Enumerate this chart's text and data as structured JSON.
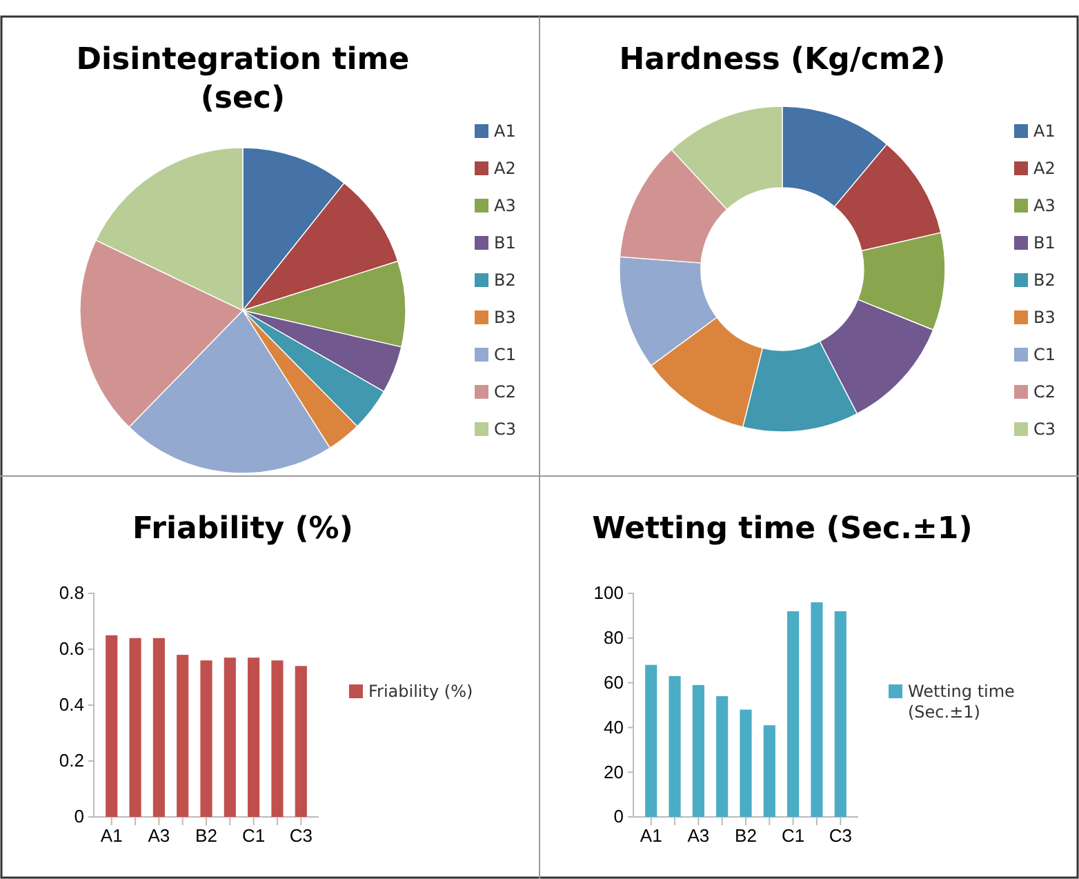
{
  "chart_data": [
    {
      "type": "pie",
      "title": "Disintegration time (sec)",
      "categories": [
        "A1",
        "A2",
        "A3",
        "B1",
        "B2",
        "B3",
        "C1",
        "C2",
        "C3"
      ],
      "values": [
        10.7,
        9.4,
        8.5,
        4.7,
        4.3,
        3.4,
        21.3,
        19.8,
        17.9
      ],
      "colors": [
        "#4572a7",
        "#aa4643",
        "#89a54e",
        "#71588f",
        "#4198af",
        "#db843d",
        "#93a9cf",
        "#d19392",
        "#b9cd96"
      ],
      "legend": "right"
    },
    {
      "type": "donut",
      "title": "Hardness (Kg/cm2)",
      "categories": [
        "A1",
        "A2",
        "A3",
        "B1",
        "B2",
        "B3",
        "C1",
        "C2",
        "C3"
      ],
      "values": [
        11.1,
        10.3,
        9.7,
        11.3,
        11.5,
        11.0,
        11.3,
        11.9,
        11.9
      ],
      "colors": [
        "#4572a7",
        "#aa4643",
        "#89a54e",
        "#71588f",
        "#4198af",
        "#db843d",
        "#93a9cf",
        "#d19392",
        "#b9cd96"
      ],
      "legend": "right"
    },
    {
      "type": "bar",
      "title": "Friability (%)",
      "categories": [
        "A1",
        null,
        "A3",
        null,
        "B2",
        null,
        "C1",
        null,
        "C3"
      ],
      "series": [
        {
          "name": "Friability (%)",
          "color": "#c0504d",
          "values": [
            0.65,
            0.64,
            0.64,
            0.58,
            0.56,
            0.57,
            0.57,
            0.56,
            0.54
          ]
        }
      ],
      "ylim": [
        0,
        0.8
      ],
      "yticks": [
        0,
        0.2,
        0.4,
        0.6,
        0.8
      ],
      "legend": "right"
    },
    {
      "type": "bar",
      "title": "Wetting time (Sec.±1)",
      "categories": [
        "A1",
        null,
        "A3",
        null,
        "B2",
        null,
        "C1",
        null,
        "C3"
      ],
      "series": [
        {
          "name": "Wetting time (Sec.±1)",
          "color": "#4bacc6",
          "values": [
            68,
            63,
            59,
            54,
            48,
            41,
            92,
            96,
            92
          ]
        }
      ],
      "ylim": [
        0,
        100
      ],
      "yticks": [
        0,
        20,
        40,
        60,
        80,
        100
      ],
      "legend": "right"
    }
  ]
}
